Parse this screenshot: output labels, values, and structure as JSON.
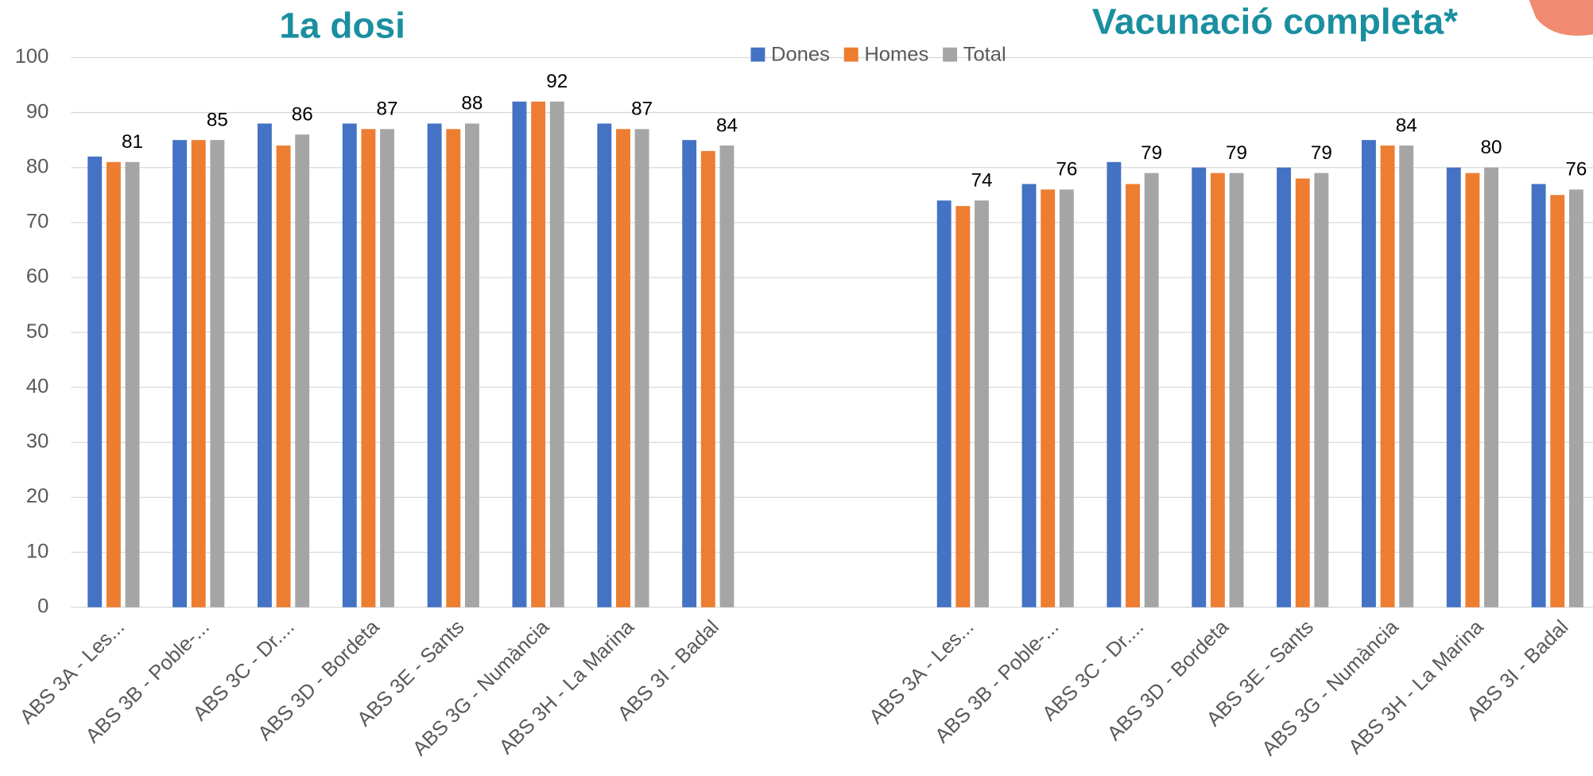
{
  "chart_data": {
    "type": "bar",
    "annotations": [
      "1a dosi",
      "Vacunació completa*"
    ],
    "categories": [
      "ABS 3A - Les...",
      "ABS 3B - Poble-...",
      "ABS 3C - Dr....",
      "ABS 3D - Bordeta",
      "ABS 3E - Sants",
      "ABS 3G - Numància",
      "ABS 3H - La Marina",
      "ABS 3I - Badal",
      null,
      null,
      "ABS 3A - Les...",
      "ABS 3B - Poble-...",
      "ABS 3C - Dr....",
      "ABS 3D - Bordeta",
      "ABS 3E - Sants",
      "ABS 3G - Numància",
      "ABS 3H - La Marina",
      "ABS 3I - Badal"
    ],
    "series": [
      {
        "name": "Dones",
        "color": "#4472c4",
        "values": [
          82,
          85,
          88,
          88,
          88,
          92,
          88,
          85,
          null,
          null,
          74,
          77,
          81,
          80,
          80,
          85,
          80,
          77
        ]
      },
      {
        "name": "Homes",
        "color": "#ed7d31",
        "values": [
          81,
          85,
          84,
          87,
          87,
          92,
          87,
          83,
          null,
          null,
          73,
          76,
          77,
          79,
          78,
          84,
          79,
          75
        ]
      },
      {
        "name": "Total",
        "color": "#a5a5a5",
        "show_labels": true,
        "values": [
          81,
          85,
          86,
          87,
          88,
          92,
          87,
          84,
          null,
          null,
          74,
          76,
          79,
          79,
          79,
          84,
          80,
          76
        ]
      }
    ],
    "ylim": [
      0,
      100
    ],
    "yticks": [
      0,
      10,
      20,
      30,
      40,
      50,
      60,
      70,
      80,
      90,
      100
    ],
    "grid": true,
    "legend": "top"
  }
}
